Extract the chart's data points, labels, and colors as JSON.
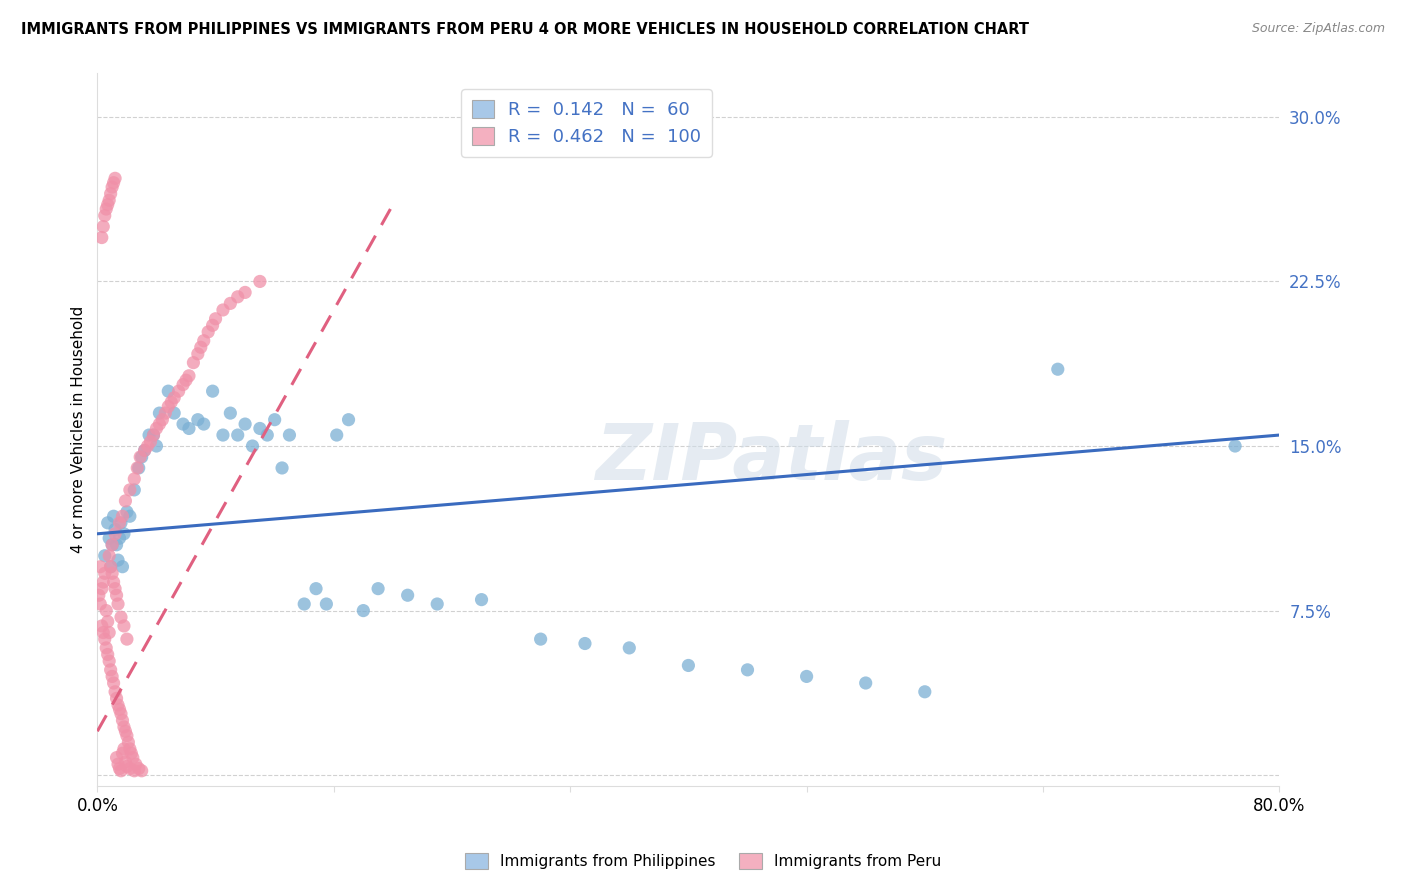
{
  "title": "IMMIGRANTS FROM PHILIPPINES VS IMMIGRANTS FROM PERU 4 OR MORE VEHICLES IN HOUSEHOLD CORRELATION CHART",
  "source": "Source: ZipAtlas.com",
  "ylabel": "4 or more Vehicles in Household",
  "xlim": [
    0.0,
    0.8
  ],
  "ylim": [
    -0.005,
    0.32
  ],
  "xticks": [
    0.0,
    0.16,
    0.32,
    0.48,
    0.64,
    0.8
  ],
  "xticklabels": [
    "0.0%",
    "",
    "",
    "",
    "",
    "80.0%"
  ],
  "yticks": [
    0.0,
    0.075,
    0.15,
    0.225,
    0.3
  ],
  "yticklabels": [
    "",
    "7.5%",
    "15.0%",
    "22.5%",
    "30.0%"
  ],
  "philippines_R": 0.142,
  "philippines_N": 60,
  "peru_R": 0.462,
  "peru_N": 100,
  "philippines_dot_color": "#7bafd4",
  "peru_dot_color": "#f090a8",
  "philippines_line_color": "#3a6bbf",
  "peru_line_color": "#e06080",
  "philippines_legend_color": "#a8c8e8",
  "peru_legend_color": "#f4b0c0",
  "legend_text_color": "#4472c4",
  "watermark": "ZIPatlas",
  "background_color": "#ffffff",
  "grid_color": "#cccccc",
  "philippines_x": [
    0.005,
    0.007,
    0.008,
    0.009,
    0.01,
    0.011,
    0.012,
    0.013,
    0.014,
    0.015,
    0.016,
    0.017,
    0.018,
    0.02,
    0.022,
    0.025,
    0.028,
    0.03,
    0.032,
    0.035,
    0.038,
    0.04,
    0.042,
    0.048,
    0.052,
    0.058,
    0.062,
    0.068,
    0.072,
    0.078,
    0.085,
    0.09,
    0.095,
    0.1,
    0.105,
    0.11,
    0.115,
    0.12,
    0.125,
    0.13,
    0.14,
    0.148,
    0.155,
    0.162,
    0.17,
    0.18,
    0.19,
    0.21,
    0.23,
    0.26,
    0.3,
    0.33,
    0.36,
    0.4,
    0.44,
    0.48,
    0.52,
    0.56,
    0.65,
    0.77
  ],
  "philippines_y": [
    0.1,
    0.115,
    0.108,
    0.095,
    0.105,
    0.118,
    0.112,
    0.105,
    0.098,
    0.108,
    0.115,
    0.095,
    0.11,
    0.12,
    0.118,
    0.13,
    0.14,
    0.145,
    0.148,
    0.155,
    0.155,
    0.15,
    0.165,
    0.175,
    0.165,
    0.16,
    0.158,
    0.162,
    0.16,
    0.175,
    0.155,
    0.165,
    0.155,
    0.16,
    0.15,
    0.158,
    0.155,
    0.162,
    0.14,
    0.155,
    0.078,
    0.085,
    0.078,
    0.155,
    0.162,
    0.075,
    0.085,
    0.082,
    0.078,
    0.08,
    0.062,
    0.06,
    0.058,
    0.05,
    0.048,
    0.045,
    0.042,
    0.038,
    0.185,
    0.15
  ],
  "peru_x": [
    0.001,
    0.002,
    0.002,
    0.003,
    0.003,
    0.004,
    0.004,
    0.005,
    0.005,
    0.006,
    0.006,
    0.007,
    0.007,
    0.008,
    0.008,
    0.008,
    0.009,
    0.009,
    0.01,
    0.01,
    0.01,
    0.011,
    0.011,
    0.012,
    0.012,
    0.012,
    0.013,
    0.013,
    0.014,
    0.014,
    0.015,
    0.015,
    0.016,
    0.016,
    0.017,
    0.017,
    0.018,
    0.018,
    0.019,
    0.019,
    0.02,
    0.02,
    0.021,
    0.022,
    0.022,
    0.023,
    0.024,
    0.025,
    0.026,
    0.027,
    0.028,
    0.029,
    0.03,
    0.032,
    0.034,
    0.036,
    0.038,
    0.04,
    0.042,
    0.044,
    0.046,
    0.048,
    0.05,
    0.052,
    0.055,
    0.058,
    0.06,
    0.062,
    0.065,
    0.068,
    0.07,
    0.072,
    0.075,
    0.078,
    0.08,
    0.085,
    0.09,
    0.095,
    0.1,
    0.11,
    0.003,
    0.004,
    0.005,
    0.006,
    0.007,
    0.008,
    0.009,
    0.01,
    0.011,
    0.012,
    0.013,
    0.014,
    0.015,
    0.016,
    0.017,
    0.018,
    0.019,
    0.02,
    0.022,
    0.025
  ],
  "peru_y": [
    0.082,
    0.078,
    0.095,
    0.068,
    0.085,
    0.065,
    0.088,
    0.062,
    0.092,
    0.058,
    0.075,
    0.055,
    0.07,
    0.052,
    0.065,
    0.1,
    0.048,
    0.095,
    0.045,
    0.092,
    0.105,
    0.042,
    0.088,
    0.038,
    0.085,
    0.11,
    0.035,
    0.082,
    0.032,
    0.078,
    0.03,
    0.115,
    0.028,
    0.072,
    0.025,
    0.118,
    0.022,
    0.068,
    0.02,
    0.125,
    0.018,
    0.062,
    0.015,
    0.012,
    0.13,
    0.01,
    0.008,
    0.135,
    0.005,
    0.14,
    0.003,
    0.145,
    0.002,
    0.148,
    0.15,
    0.152,
    0.155,
    0.158,
    0.16,
    0.162,
    0.165,
    0.168,
    0.17,
    0.172,
    0.175,
    0.178,
    0.18,
    0.182,
    0.188,
    0.192,
    0.195,
    0.198,
    0.202,
    0.205,
    0.208,
    0.212,
    0.215,
    0.218,
    0.22,
    0.225,
    0.245,
    0.25,
    0.255,
    0.258,
    0.26,
    0.262,
    0.265,
    0.268,
    0.27,
    0.272,
    0.008,
    0.005,
    0.003,
    0.002,
    0.01,
    0.012,
    0.006,
    0.004,
    0.003,
    0.002
  ]
}
